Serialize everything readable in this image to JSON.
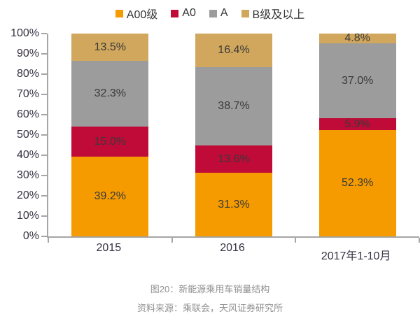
{
  "figure": {
    "caption": "图20：新能源乘用车销量结构",
    "source": "资料来源：乘联会，天风证券研究所"
  },
  "chart_data": {
    "type": "bar",
    "stacked": true,
    "title": "图20：新能源乘用车销量结构",
    "categories": [
      "2015",
      "2016",
      "2017年1-10月"
    ],
    "series": [
      {
        "name": "A00级",
        "color": "#F59B00",
        "values": [
          39.2,
          31.3,
          52.3
        ]
      },
      {
        "name": "A0",
        "color": "#C00A38",
        "values": [
          15.0,
          13.6,
          5.9
        ]
      },
      {
        "name": "A",
        "color": "#9C9C9C",
        "values": [
          32.3,
          38.7,
          37.0
        ]
      },
      {
        "name": "B级及以上",
        "color": "#D0A75C",
        "values": [
          13.5,
          16.4,
          4.8
        ]
      }
    ],
    "value_label_suffix": "%",
    "y_tick_labels": [
      "100%",
      "90%",
      "80%",
      "70%",
      "60%",
      "50%",
      "40%",
      "30%",
      "20%",
      "10%",
      "0%"
    ],
    "ylim": [
      0,
      100
    ],
    "grid": false,
    "legend_position": "top",
    "axis_color": "#a6a6a6",
    "label_color": "#3a3a3a"
  }
}
